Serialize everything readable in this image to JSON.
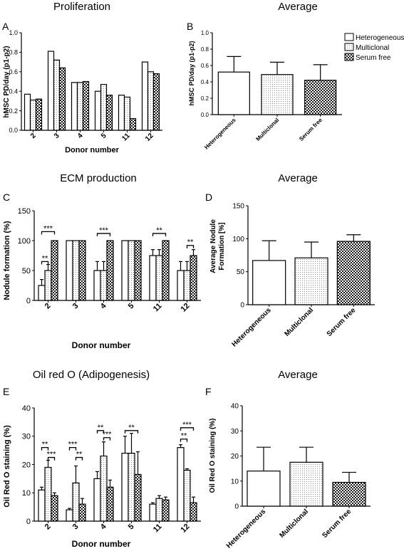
{
  "chart_data": [
    {
      "panel": "A",
      "type": "bar",
      "title": "Proliferation",
      "xlabel": "Donor number",
      "ylabel": "hMSC PD/day (p1-p2)",
      "categories": [
        "2",
        "3",
        "4",
        "5",
        "11",
        "12"
      ],
      "ylim": [
        0,
        1.0
      ],
      "yticks": [
        "0.0",
        "0.2",
        "0.4",
        "0.6",
        "0.8",
        "1.0"
      ],
      "grid": false,
      "series": [
        {
          "name": "Heterogeneous",
          "values": [
            0.37,
            0.81,
            0.49,
            0.4,
            0.36,
            0.7
          ]
        },
        {
          "name": "Multiclonal",
          "values": [
            0.31,
            0.72,
            0.49,
            0.47,
            0.34,
            0.6
          ]
        },
        {
          "name": "Serum free",
          "values": [
            0.32,
            0.64,
            0.5,
            0.36,
            0.12,
            0.58
          ]
        }
      ]
    },
    {
      "panel": "B",
      "type": "bar",
      "title": "Average",
      "xlabel": "",
      "ylabel": "hMSC PD/day (p1-p2)",
      "categories": [
        "Heterogeneous",
        "Multiclonal",
        "Serum free"
      ],
      "ylim": [
        0,
        1.0
      ],
      "yticks": [
        "0.0",
        "0.2",
        "0.4",
        "0.6",
        "0.8",
        "1.0"
      ],
      "grid": false,
      "legend": {
        "position": "top-right",
        "entries": [
          "Heterogeneous",
          "Multiclonal",
          "Serum free"
        ]
      },
      "values": [
        0.52,
        0.49,
        0.42
      ],
      "errors": [
        0.19,
        0.15,
        0.19
      ]
    },
    {
      "panel": "C",
      "type": "bar",
      "title": "ECM production",
      "xlabel": "Donor number",
      "ylabel": "Nodule formation (%)",
      "categories": [
        "2",
        "3",
        "4",
        "5",
        "11",
        "12"
      ],
      "ylim": [
        0,
        150
      ],
      "yticks": [
        "0",
        "50",
        "100",
        "150"
      ],
      "grid": false,
      "series": [
        {
          "name": "Heterogeneous",
          "values": [
            25,
            100,
            50,
            100,
            75,
            50
          ],
          "errors": [
            10,
            0,
            15,
            0,
            10,
            15
          ]
        },
        {
          "name": "Multiclonal",
          "values": [
            50,
            100,
            50,
            100,
            75,
            50
          ],
          "errors": [
            10,
            0,
            15,
            0,
            10,
            15
          ]
        },
        {
          "name": "Serum free",
          "values": [
            100,
            100,
            100,
            100,
            100,
            75
          ],
          "errors": [
            0,
            0,
            0,
            0,
            0,
            10
          ]
        }
      ],
      "annotations": [
        {
          "text": "***",
          "category": "2",
          "from": 0,
          "to": 2,
          "y": 115
        },
        {
          "text": "**",
          "category": "2",
          "from": 0,
          "to": 1,
          "y": 65
        },
        {
          "text": "***",
          "category": "4",
          "from": 0,
          "to": 2,
          "y": 112
        },
        {
          "text": "**",
          "category": "11",
          "from": 0,
          "to": 2,
          "y": 112
        },
        {
          "text": "**",
          "category": "12",
          "from": 1,
          "to": 2,
          "y": 92
        }
      ]
    },
    {
      "panel": "D",
      "type": "bar",
      "title": "Average",
      "xlabel": "",
      "ylabel": "Average Nodule Formation [%]",
      "ylabel_lines": [
        "Average Nodule",
        "Formation [%]"
      ],
      "categories": [
        "Heterogeneous",
        "Multiclonal",
        "Serum free"
      ],
      "ylim": [
        0,
        150
      ],
      "yticks": [
        "0",
        "50",
        "100",
        "150"
      ],
      "grid": false,
      "values": [
        67,
        71,
        96
      ],
      "errors": [
        30,
        24,
        10
      ]
    },
    {
      "panel": "E",
      "type": "bar",
      "title": "Oil red O (Adipogenesis)",
      "xlabel": "Donor number",
      "ylabel": "Oil Red O staining (%)",
      "categories": [
        "2",
        "3",
        "4",
        "5",
        "11",
        "12"
      ],
      "ylim": [
        0,
        40
      ],
      "yticks": [
        "0",
        "10",
        "20",
        "30",
        "40"
      ],
      "grid": false,
      "series": [
        {
          "name": "Heterogeneous",
          "values": [
            11,
            4,
            15,
            24,
            6,
            26
          ],
          "errors": [
            1,
            0.5,
            2.5,
            6,
            0.5,
            1
          ]
        },
        {
          "name": "Multiclonal",
          "values": [
            19,
            13.5,
            23,
            24,
            8,
            18
          ],
          "errors": [
            2.5,
            6,
            5,
            7,
            1,
            0.5
          ]
        },
        {
          "name": "Serum free",
          "values": [
            9,
            6,
            12,
            16.5,
            7.5,
            6.5
          ],
          "errors": [
            1,
            2,
            2.5,
            8,
            1,
            2
          ]
        }
      ],
      "annotations": [
        {
          "text": "**",
          "category": "2",
          "from": 0,
          "to": 1,
          "y": 26
        },
        {
          "text": "***",
          "category": "2",
          "from": 1,
          "to": 2,
          "y": 22.5
        },
        {
          "text": "***",
          "category": "3",
          "from": 0,
          "to": 1,
          "y": 26
        },
        {
          "text": "**",
          "category": "3",
          "from": 1,
          "to": 2,
          "y": 22.5
        },
        {
          "text": "**",
          "category": "4",
          "from": 0,
          "to": 1,
          "y": 32
        },
        {
          "text": "***",
          "category": "4",
          "from": 1,
          "to": 2,
          "y": 29.5
        },
        {
          "text": "**",
          "category": "5",
          "from": 0,
          "to": 2,
          "y": 32
        },
        {
          "text": "***",
          "category": "12",
          "from": 0,
          "to": 2,
          "y": 33
        },
        {
          "text": "**",
          "category": "12",
          "from": 0,
          "to": 1,
          "y": 29
        }
      ]
    },
    {
      "panel": "F",
      "type": "bar",
      "title": "Average",
      "xlabel": "",
      "ylabel": "Oil Red O staining (%)",
      "categories": [
        "Heterogeneous",
        "Multiclonal",
        "Serum free"
      ],
      "ylim": [
        0,
        40
      ],
      "yticks": [
        "0",
        "10",
        "20",
        "30",
        "40"
      ],
      "grid": false,
      "values": [
        14,
        17.5,
        9.5
      ],
      "errors": [
        9.5,
        6,
        4
      ]
    }
  ],
  "colors": {
    "heterogeneous_fill": "#ffffff",
    "multiclonal_fill": "#e6e6e6",
    "serum_free_fill": "#9a9a9a",
    "stroke": "#000000"
  }
}
